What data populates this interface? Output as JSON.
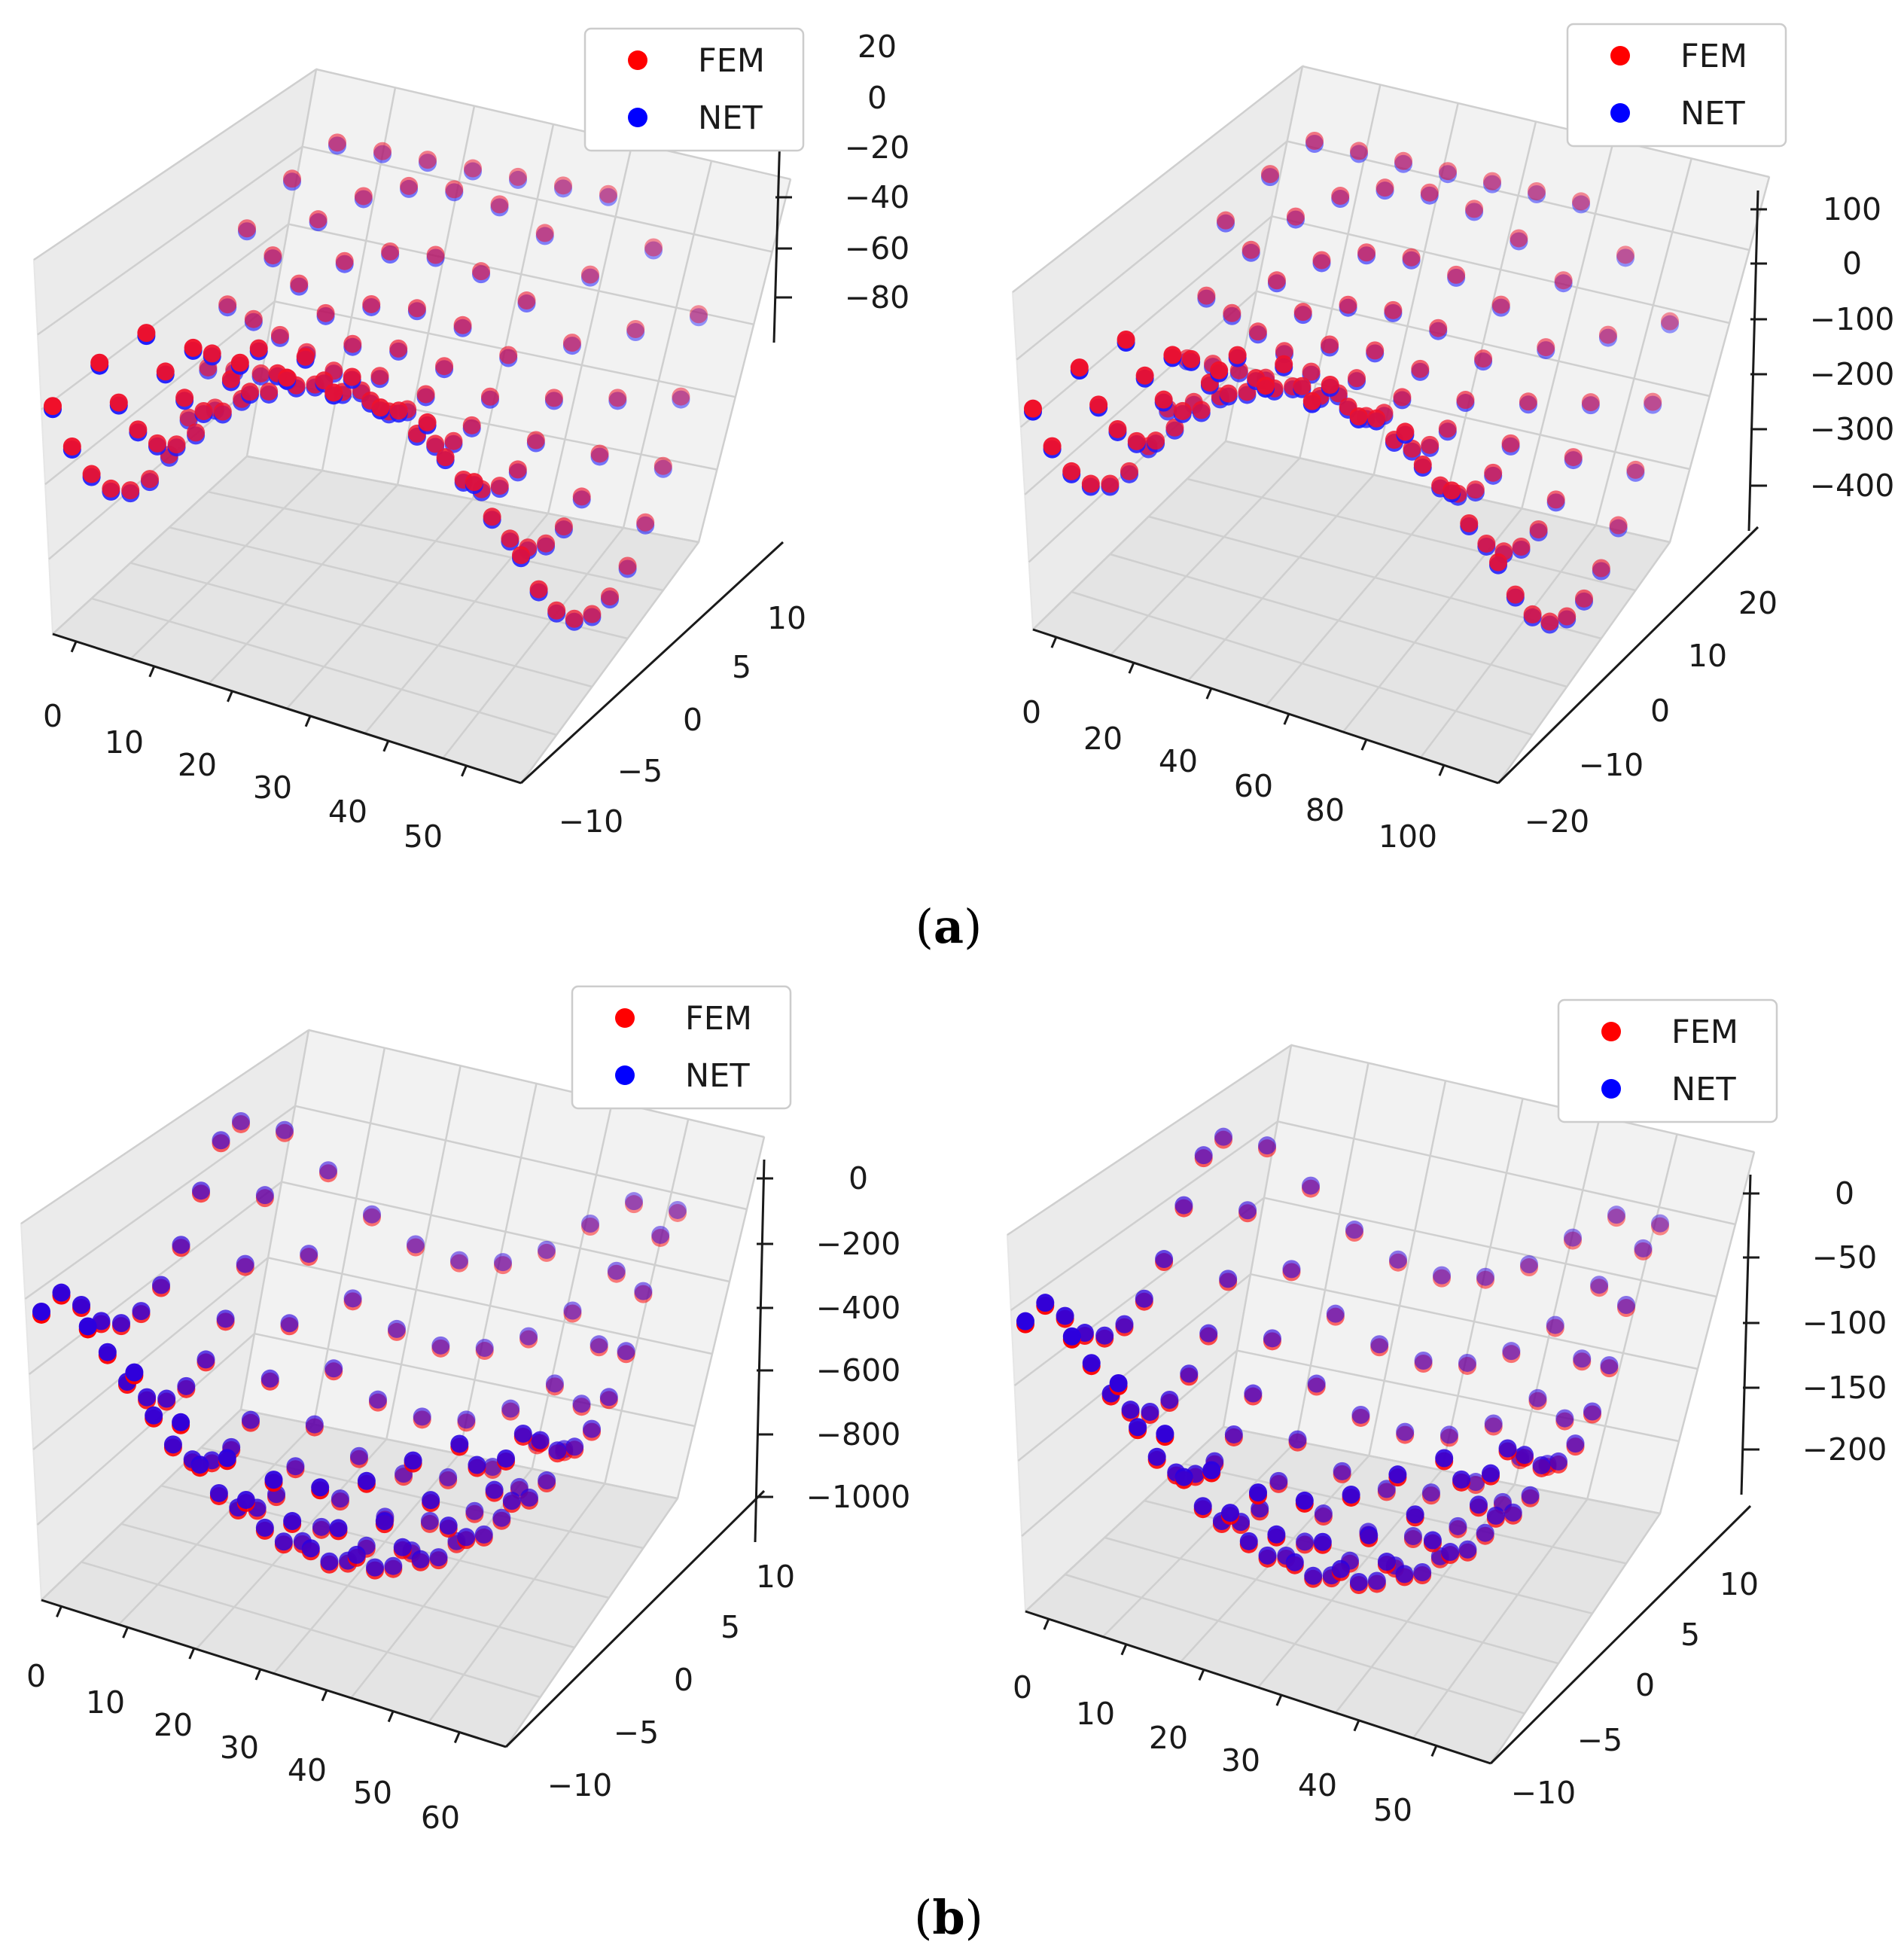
{
  "captions": {
    "a": "a",
    "b": "b"
  },
  "chart_data": [
    {
      "type": "scatter",
      "panel": "a-left",
      "legend": {
        "entries": [
          {
            "label": "FEM",
            "color": "#ff0000"
          },
          {
            "label": "NET",
            "color": "#0000ff"
          }
        ],
        "location": "top-right"
      },
      "x_ticks": [
        "0",
        "10",
        "20",
        "30",
        "40",
        "50"
      ],
      "y_ticks": [
        "−10",
        "−5",
        "0",
        "5",
        "10"
      ],
      "z_ticks": [
        "20",
        "0",
        "−20",
        "−40",
        "−60",
        "−80"
      ],
      "xlim": [
        0,
        50
      ],
      "ylim": [
        -10,
        10
      ],
      "zlim": [
        -100,
        35
      ],
      "grid": true,
      "series": [
        {
          "name": "FEM",
          "color": "#ff0000"
        },
        {
          "name": "NET",
          "color": "#0000ff"
        }
      ],
      "layout": {
        "pattern": "saddle",
        "center_z": -90,
        "edge_z": 25
      }
    },
    {
      "type": "scatter",
      "panel": "a-right",
      "legend": {
        "entries": [
          {
            "label": "FEM",
            "color": "#ff0000"
          },
          {
            "label": "NET",
            "color": "#0000ff"
          }
        ],
        "location": "top-right"
      },
      "x_ticks": [
        "0",
        "20",
        "40",
        "60",
        "80",
        "100"
      ],
      "y_ticks": [
        "−20",
        "−10",
        "0",
        "10",
        "20"
      ],
      "z_ticks": [
        "100",
        "0",
        "−100",
        "−200",
        "−300",
        "−400"
      ],
      "xlim": [
        0,
        100
      ],
      "ylim": [
        -20,
        20
      ],
      "zlim": [
        -450,
        120
      ],
      "grid": true,
      "series": [
        {
          "name": "FEM",
          "color": "#ff0000"
        },
        {
          "name": "NET",
          "color": "#0000ff"
        }
      ],
      "layout": {
        "pattern": "saddle",
        "center_z": -430,
        "edge_z": 100
      }
    },
    {
      "type": "scatter",
      "panel": "b-left",
      "legend": {
        "entries": [
          {
            "label": "FEM",
            "color": "#ff0000"
          },
          {
            "label": "NET",
            "color": "#0000ff"
          }
        ],
        "location": "top-right"
      },
      "x_ticks": [
        "0",
        "10",
        "20",
        "30",
        "40",
        "50",
        "60"
      ],
      "y_ticks": [
        "−10",
        "−5",
        "0",
        "5",
        "10"
      ],
      "z_ticks": [
        "0",
        "−200",
        "−400",
        "−600",
        "−800",
        "−1000"
      ],
      "xlim": [
        0,
        60
      ],
      "ylim": [
        -10,
        10
      ],
      "zlim": [
        -1000,
        50
      ],
      "grid": true,
      "series": [
        {
          "name": "FEM",
          "color": "#ff0000"
        },
        {
          "name": "NET",
          "color": "#0000ff"
        }
      ],
      "layout": {
        "pattern": "bowl",
        "center_z": -1000,
        "edge_z": 0
      }
    },
    {
      "type": "scatter",
      "panel": "b-right",
      "legend": {
        "entries": [
          {
            "label": "FEM",
            "color": "#ff0000"
          },
          {
            "label": "NET",
            "color": "#0000ff"
          }
        ],
        "location": "top-right"
      },
      "x_ticks": [
        "0",
        "10",
        "20",
        "30",
        "40",
        "50"
      ],
      "y_ticks": [
        "−10",
        "−5",
        "0",
        "5",
        "10"
      ],
      "z_ticks": [
        "0",
        "−50",
        "−100",
        "−150",
        "−200"
      ],
      "xlim": [
        0,
        50
      ],
      "ylim": [
        -10,
        10
      ],
      "zlim": [
        -230,
        10
      ],
      "grid": true,
      "series": [
        {
          "name": "FEM",
          "color": "#ff0000"
        },
        {
          "name": "NET",
          "color": "#0000ff"
        }
      ],
      "layout": {
        "pattern": "bowl",
        "center_z": -225,
        "edge_z": 0
      }
    }
  ]
}
